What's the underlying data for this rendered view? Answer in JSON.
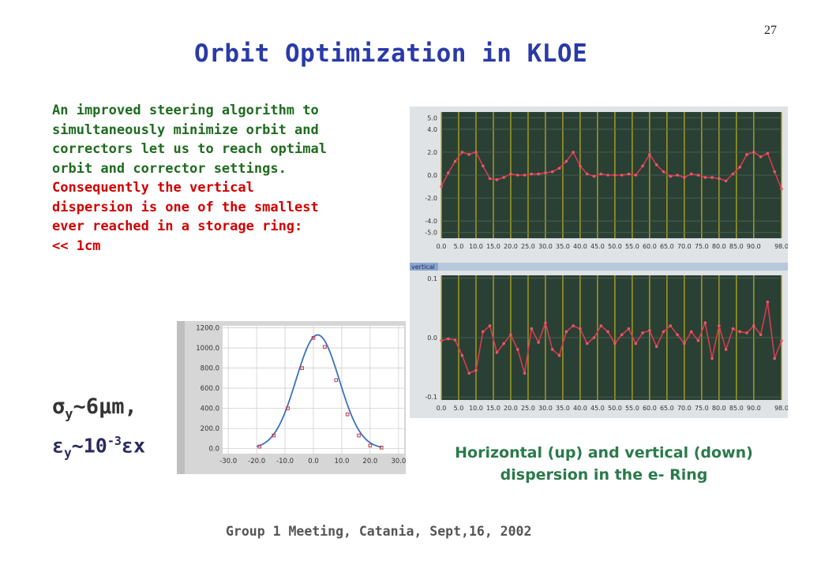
{
  "page_number": "27",
  "title": "Orbit Optimization in KLOE",
  "paragraph_green": [
    "An improved steering algorithm to",
    "simultaneously minimize orbit and",
    "correctors let us to reach optimal",
    "orbit and corrector settings."
  ],
  "paragraph_red": [
    "Consequently the vertical",
    "dispersion is one of the smallest",
    "ever reached in a storage ring:",
    "<< 1cm"
  ],
  "sigma_line": {
    "symbol": "σ",
    "sub": "y",
    "rest": "~6μm,"
  },
  "emit_line": {
    "symbol": "ε",
    "sub": "y",
    "mid": "~10",
    "sup": "-3",
    "symbol2": "ε",
    "tail": "x"
  },
  "caption": [
    "Horizontal (up) and vertical (down)",
    "dispersion in the e- Ring"
  ],
  "footer": "Group 1 Meeting, Catania, Sept,16, 2002",
  "colors": {
    "plot_bg": "#2a4034",
    "plot_grid": "#b7a820",
    "trace": "#d83a4e",
    "gauss": "#3a72c0"
  },
  "chart_data": [
    {
      "type": "line",
      "ylim": [
        -5.5,
        5.5
      ],
      "ytick_labels": [
        "5.0",
        "4.0",
        "2.0",
        "0.0",
        "-2.0",
        "-4.0",
        "-5.0"
      ],
      "ytick_values": [
        5,
        4,
        2,
        0,
        -2,
        -4,
        -5
      ],
      "xlim": [
        0,
        98
      ],
      "xtick_labels": [
        "0.0",
        "5.0",
        "10.0",
        "15.0",
        "20.0",
        "25.0",
        "30.0",
        "35.0",
        "40.0",
        "45.0",
        "50.0",
        "55.0",
        "60.0",
        "65.0",
        "70.0",
        "75.0",
        "80.0",
        "85.0",
        "90.0",
        "98.0"
      ],
      "xtick_values": [
        0,
        5,
        10,
        15,
        20,
        25,
        30,
        35,
        40,
        45,
        50,
        55,
        60,
        65,
        70,
        75,
        80,
        85,
        90,
        98
      ],
      "x": [
        0,
        2,
        4,
        6,
        8,
        10,
        12,
        14,
        16,
        18,
        20,
        22,
        24,
        26,
        28,
        30,
        32,
        34,
        36,
        38,
        40,
        42,
        44,
        46,
        48,
        50,
        52,
        54,
        56,
        58,
        60,
        62,
        64,
        66,
        68,
        70,
        72,
        74,
        76,
        78,
        80,
        82,
        84,
        86,
        88,
        90,
        92,
        94,
        96,
        98
      ],
      "y": [
        -1.0,
        0.2,
        1.2,
        2.0,
        1.8,
        2.0,
        0.8,
        -0.3,
        -0.4,
        -0.2,
        0.1,
        0.0,
        0.0,
        0.1,
        0.1,
        0.2,
        0.3,
        0.6,
        1.2,
        2.0,
        0.8,
        0.1,
        -0.1,
        0.1,
        0.0,
        0.0,
        0.0,
        0.1,
        0.0,
        0.8,
        1.8,
        0.9,
        0.3,
        -0.1,
        0.0,
        -0.2,
        0.1,
        0.0,
        -0.2,
        -0.2,
        -0.3,
        -0.5,
        0.1,
        0.7,
        1.8,
        2.0,
        1.6,
        1.9,
        0.3,
        -1.2
      ]
    },
    {
      "type": "line",
      "ylim": [
        -0.105,
        0.105
      ],
      "ytick_labels": [
        "0.1",
        "0.0",
        "-0.1"
      ],
      "ytick_values": [
        0.1,
        0,
        -0.1
      ],
      "xlim": [
        0,
        98
      ],
      "xtick_labels": [
        "0.0",
        "5.0",
        "10.0",
        "15.0",
        "20.0",
        "25.0",
        "30.0",
        "35.0",
        "40.0",
        "45.0",
        "50.0",
        "55.0",
        "60.0",
        "65.0",
        "70.0",
        "75.0",
        "80.0",
        "85.0",
        "90.0",
        "98.0"
      ],
      "xtick_values": [
        0,
        5,
        10,
        15,
        20,
        25,
        30,
        35,
        40,
        45,
        50,
        55,
        60,
        65,
        70,
        75,
        80,
        85,
        90,
        98
      ],
      "x": [
        0,
        2,
        4,
        6,
        8,
        10,
        12,
        14,
        16,
        18,
        20,
        22,
        24,
        26,
        28,
        30,
        32,
        34,
        36,
        38,
        40,
        42,
        44,
        46,
        48,
        50,
        52,
        54,
        56,
        58,
        60,
        62,
        64,
        66,
        68,
        70,
        72,
        74,
        76,
        78,
        80,
        82,
        84,
        86,
        88,
        90,
        92,
        94,
        96,
        98
      ],
      "y": [
        -0.005,
        -0.002,
        -0.004,
        -0.03,
        -0.06,
        -0.055,
        0.01,
        0.02,
        -0.025,
        -0.01,
        0.005,
        -0.02,
        -0.06,
        0.015,
        -0.008,
        0.025,
        -0.02,
        -0.03,
        0.01,
        0.02,
        0.015,
        -0.01,
        0.0,
        0.02,
        0.01,
        -0.01,
        0.005,
        0.015,
        -0.01,
        0.008,
        0.012,
        -0.015,
        0.01,
        0.02,
        0.005,
        -0.01,
        0.01,
        -0.005,
        0.025,
        -0.035,
        0.02,
        -0.02,
        0.015,
        0.01,
        0.008,
        0.02,
        0.005,
        0.06,
        -0.035,
        -0.005
      ]
    },
    {
      "type": "line",
      "ylim": [
        -50,
        1220
      ],
      "ytick_labels": [
        "1200.0",
        "1000.0",
        "800.0",
        "600.0",
        "400.0",
        "200.0",
        "0.0"
      ],
      "ytick_values": [
        1200,
        1000,
        800,
        600,
        400,
        200,
        0
      ],
      "xlim": [
        -32,
        32
      ],
      "xtick_labels": [
        "-30.0",
        "-20.0",
        "-10.0",
        "0.0",
        "10.0",
        "20.0",
        "30.0"
      ],
      "xtick_values": [
        -30,
        -20,
        -10,
        0,
        10,
        20,
        30
      ],
      "gauss_peak": 1130,
      "gauss_center": 1.5,
      "gauss_sigma": 7.6,
      "markers_x": [
        -19,
        -14,
        -9,
        -4,
        0,
        4,
        8,
        12,
        16,
        20,
        24
      ],
      "markers_y": [
        20,
        130,
        400,
        800,
        1100,
        1010,
        680,
        340,
        130,
        30,
        10
      ]
    }
  ]
}
